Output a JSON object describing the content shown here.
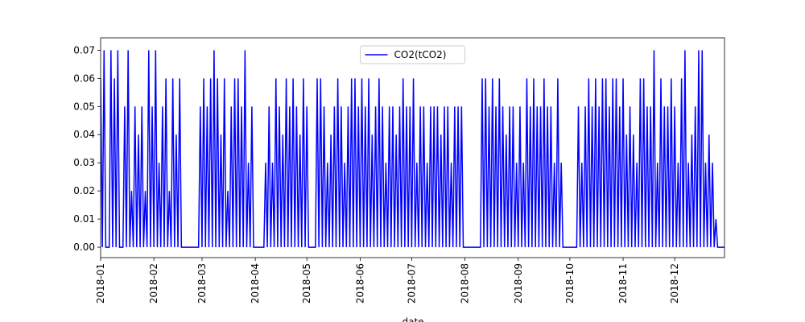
{
  "chart_data": {
    "type": "line",
    "x_label": "date",
    "x": [
      0,
      1,
      2,
      3,
      4,
      5,
      6,
      7,
      8,
      9,
      10,
      11,
      12,
      13,
      14,
      15,
      16,
      17,
      18,
      19,
      20,
      21,
      22,
      23,
      24,
      25,
      26,
      27,
      28,
      29,
      30,
      31,
      32,
      33,
      34,
      35,
      36,
      37,
      38,
      39,
      40,
      41,
      42,
      43,
      44,
      45,
      46,
      47,
      48,
      49,
      50,
      51,
      52,
      53,
      54,
      55,
      56,
      57,
      58,
      59,
      60,
      61,
      62,
      63,
      64,
      65,
      66,
      67,
      68,
      69,
      70,
      71,
      72,
      73,
      74,
      75,
      76,
      77,
      78,
      79,
      80,
      81,
      82,
      83,
      84,
      85,
      86,
      87,
      88,
      89,
      90,
      91,
      92,
      93,
      94,
      95,
      96,
      97,
      98,
      99,
      100,
      101,
      102,
      103,
      104,
      105,
      106,
      107,
      108,
      109,
      110,
      111,
      112,
      113,
      114,
      115,
      116,
      117,
      118,
      119,
      120,
      121,
      122,
      123,
      124,
      125,
      126,
      127,
      128,
      129,
      130,
      131,
      132,
      133,
      134,
      135,
      136,
      137,
      138,
      139,
      140,
      141,
      142,
      143,
      144,
      145,
      146,
      147,
      148,
      149,
      150,
      151,
      152,
      153,
      154,
      155,
      156,
      157,
      158,
      159,
      160,
      161,
      162,
      163,
      164,
      165,
      166,
      167,
      168,
      169,
      170,
      171,
      172,
      173,
      174,
      175,
      176,
      177,
      178,
      179,
      180,
      181,
      182,
      183,
      184,
      185,
      186,
      187,
      188,
      189,
      190,
      191,
      192,
      193,
      194,
      195,
      196,
      197,
      198,
      199,
      200,
      201,
      202,
      203,
      204,
      205,
      206,
      207,
      208,
      209,
      210,
      211,
      212,
      213,
      214,
      215,
      216,
      217,
      218,
      219,
      220,
      221,
      222,
      223,
      224,
      225,
      226,
      227,
      228,
      229,
      230,
      231,
      232,
      233,
      234,
      235,
      236,
      237,
      238,
      239,
      240,
      241,
      242,
      243,
      244,
      245,
      246,
      247,
      248,
      249,
      250,
      251,
      252,
      253,
      254,
      255,
      256,
      257,
      258,
      259,
      260,
      261,
      262,
      263,
      264,
      265,
      266,
      267,
      268,
      269,
      270,
      271,
      272,
      273,
      274,
      275,
      276,
      277,
      278,
      279,
      280,
      281,
      282,
      283,
      284,
      285,
      286,
      287,
      288,
      289,
      290,
      291,
      292,
      293,
      294,
      295,
      296,
      297,
      298,
      299,
      300,
      301,
      302,
      303,
      304,
      305,
      306,
      307,
      308,
      309,
      310,
      311,
      312,
      313,
      314,
      315,
      316,
      317,
      318,
      319,
      320,
      321,
      322,
      323,
      324,
      325,
      326,
      327,
      328,
      329,
      330,
      331,
      332,
      333,
      334,
      335,
      336,
      337,
      338,
      339,
      340,
      341,
      342,
      343,
      344,
      345,
      346,
      347,
      348,
      349,
      350,
      351,
      352,
      353,
      354,
      355,
      356,
      357,
      358,
      359,
      360,
      361,
      362,
      363
    ],
    "series": [
      {
        "name": "CO2(tCO2)",
        "color": "#0000ff",
        "values": [
          0.06,
          0,
          0.07,
          0,
          0,
          0,
          0.07,
          0,
          0.06,
          0,
          0.07,
          0,
          0,
          0,
          0.05,
          0,
          0.07,
          0,
          0.02,
          0,
          0.05,
          0,
          0.04,
          0,
          0.05,
          0,
          0.02,
          0,
          0.07,
          0,
          0.05,
          0,
          0.07,
          0,
          0.03,
          0,
          0.05,
          0,
          0.06,
          0,
          0.02,
          0,
          0.06,
          0,
          0.04,
          0,
          0.06,
          0,
          0,
          0,
          0,
          0,
          0,
          0,
          0,
          0,
          0,
          0,
          0.05,
          0,
          0.06,
          0,
          0.05,
          0,
          0.06,
          0,
          0.07,
          0,
          0.06,
          0,
          0.04,
          0,
          0.06,
          0,
          0.02,
          0,
          0.05,
          0,
          0.06,
          0,
          0.06,
          0,
          0.05,
          0,
          0.07,
          0,
          0.03,
          0,
          0.05,
          0,
          0,
          0,
          0,
          0,
          0,
          0,
          0.03,
          0,
          0.05,
          0,
          0.03,
          0,
          0.06,
          0,
          0.05,
          0,
          0.04,
          0,
          0.06,
          0,
          0.05,
          0,
          0.06,
          0,
          0.05,
          0,
          0.04,
          0,
          0.06,
          0,
          0.05,
          0,
          0,
          0,
          0,
          0,
          0.06,
          0,
          0.06,
          0,
          0.05,
          0,
          0.03,
          0,
          0.04,
          0,
          0.05,
          0,
          0.06,
          0,
          0.05,
          0,
          0.03,
          0,
          0.05,
          0,
          0.06,
          0,
          0.06,
          0,
          0.05,
          0,
          0.06,
          0,
          0.05,
          0,
          0.06,
          0,
          0.04,
          0,
          0.05,
          0,
          0.06,
          0,
          0.05,
          0,
          0.03,
          0,
          0.05,
          0,
          0.05,
          0,
          0.04,
          0,
          0.05,
          0,
          0.06,
          0,
          0.05,
          0,
          0.05,
          0,
          0.06,
          0,
          0.03,
          0,
          0.05,
          0,
          0.05,
          0,
          0.03,
          0,
          0.05,
          0,
          0.05,
          0,
          0.05,
          0,
          0.04,
          0,
          0.05,
          0,
          0.05,
          0,
          0.03,
          0,
          0.05,
          0,
          0.05,
          0,
          0.05,
          0,
          0,
          0,
          0,
          0,
          0,
          0,
          0,
          0,
          0,
          0,
          0.06,
          0,
          0.06,
          0,
          0.05,
          0,
          0.06,
          0,
          0.05,
          0,
          0.06,
          0,
          0.05,
          0,
          0.04,
          0,
          0.05,
          0,
          0.05,
          0,
          0.03,
          0,
          0.05,
          0,
          0.03,
          0,
          0.06,
          0,
          0.05,
          0,
          0.06,
          0,
          0.05,
          0,
          0.05,
          0,
          0.06,
          0,
          0.05,
          0,
          0.05,
          0,
          0.03,
          0,
          0.06,
          0,
          0.03,
          0,
          0,
          0,
          0,
          0,
          0,
          0,
          0,
          0,
          0.05,
          0,
          0.03,
          0,
          0.05,
          0,
          0.06,
          0,
          0.05,
          0,
          0.06,
          0,
          0.05,
          0,
          0.06,
          0,
          0.06,
          0,
          0.05,
          0,
          0.06,
          0,
          0.06,
          0,
          0.05,
          0,
          0.06,
          0,
          0.04,
          0,
          0.05,
          0,
          0.04,
          0,
          0.03,
          0,
          0.06,
          0,
          0.06,
          0,
          0.05,
          0,
          0.05,
          0,
          0.07,
          0,
          0.03,
          0,
          0.06,
          0,
          0.05,
          0,
          0.05,
          0,
          0.06,
          0,
          0.05,
          0,
          0.03,
          0,
          0.06,
          0,
          0.07,
          0,
          0.03,
          0,
          0.04,
          0,
          0.05,
          0,
          0.07,
          0,
          0.07,
          0,
          0.03,
          0,
          0.04,
          0,
          0.03,
          0,
          0.01,
          0,
          0,
          0,
          0,
          0
        ]
      }
    ],
    "xlim": [
      0,
      363
    ],
    "xticks": [
      {
        "value": 0,
        "label": "2018-01"
      },
      {
        "value": 31,
        "label": "2018-02"
      },
      {
        "value": 59,
        "label": "2018-03"
      },
      {
        "value": 90,
        "label": "2018-04"
      },
      {
        "value": 120,
        "label": "2018-05"
      },
      {
        "value": 151,
        "label": "2018-06"
      },
      {
        "value": 181,
        "label": "2018-07"
      },
      {
        "value": 212,
        "label": "2018-08"
      },
      {
        "value": 243,
        "label": "2018-09"
      },
      {
        "value": 273,
        "label": "2018-10"
      },
      {
        "value": 304,
        "label": "2018-11"
      },
      {
        "value": 334,
        "label": "2018-12"
      }
    ],
    "ylim": [
      -0.0037,
      0.0744
    ],
    "yticks": [
      {
        "value": 0,
        "label": "0.00"
      },
      {
        "value": 0.01,
        "label": "0.01"
      },
      {
        "value": 0.02,
        "label": "0.02"
      },
      {
        "value": 0.03,
        "label": "0.03"
      },
      {
        "value": 0.04,
        "label": "0.04"
      },
      {
        "value": 0.05,
        "label": "0.05"
      },
      {
        "value": 0.06,
        "label": "0.06"
      },
      {
        "value": 0.07,
        "label": "0.07"
      }
    ],
    "legend": "upper center",
    "grid": false
  }
}
